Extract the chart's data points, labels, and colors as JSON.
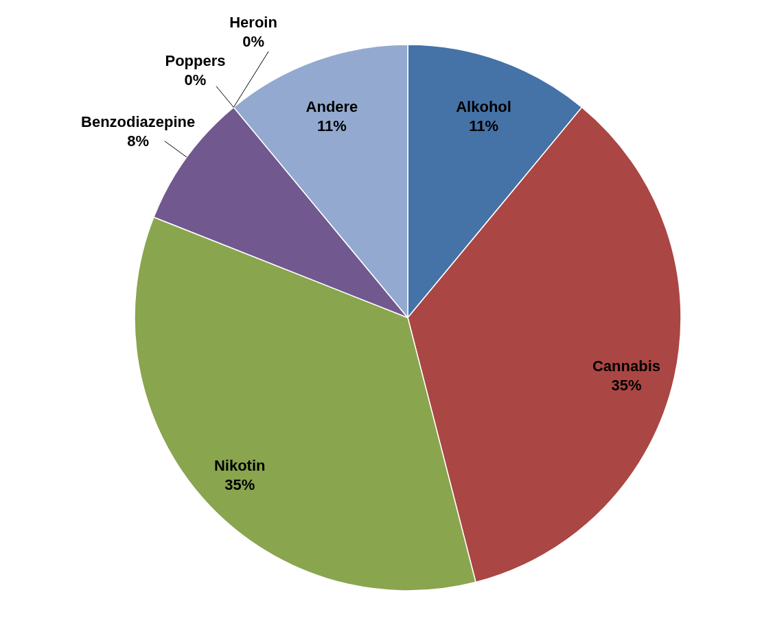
{
  "chart_data": {
    "type": "pie",
    "categories": [
      "Alkohol",
      "Cannabis",
      "Nikotin",
      "Benzodiazepine",
      "Poppers",
      "Heroin",
      "Andere"
    ],
    "values": [
      11,
      35,
      35,
      8,
      0,
      0,
      11
    ],
    "value_labels": [
      "11%",
      "35%",
      "35%",
      "8%",
      "0%",
      "0%",
      "11%"
    ],
    "colors": [
      "#4572a7",
      "#aa4643",
      "#89a54e",
      "#71588f",
      "#4198af",
      "#db843d",
      "#93a9cf"
    ]
  }
}
